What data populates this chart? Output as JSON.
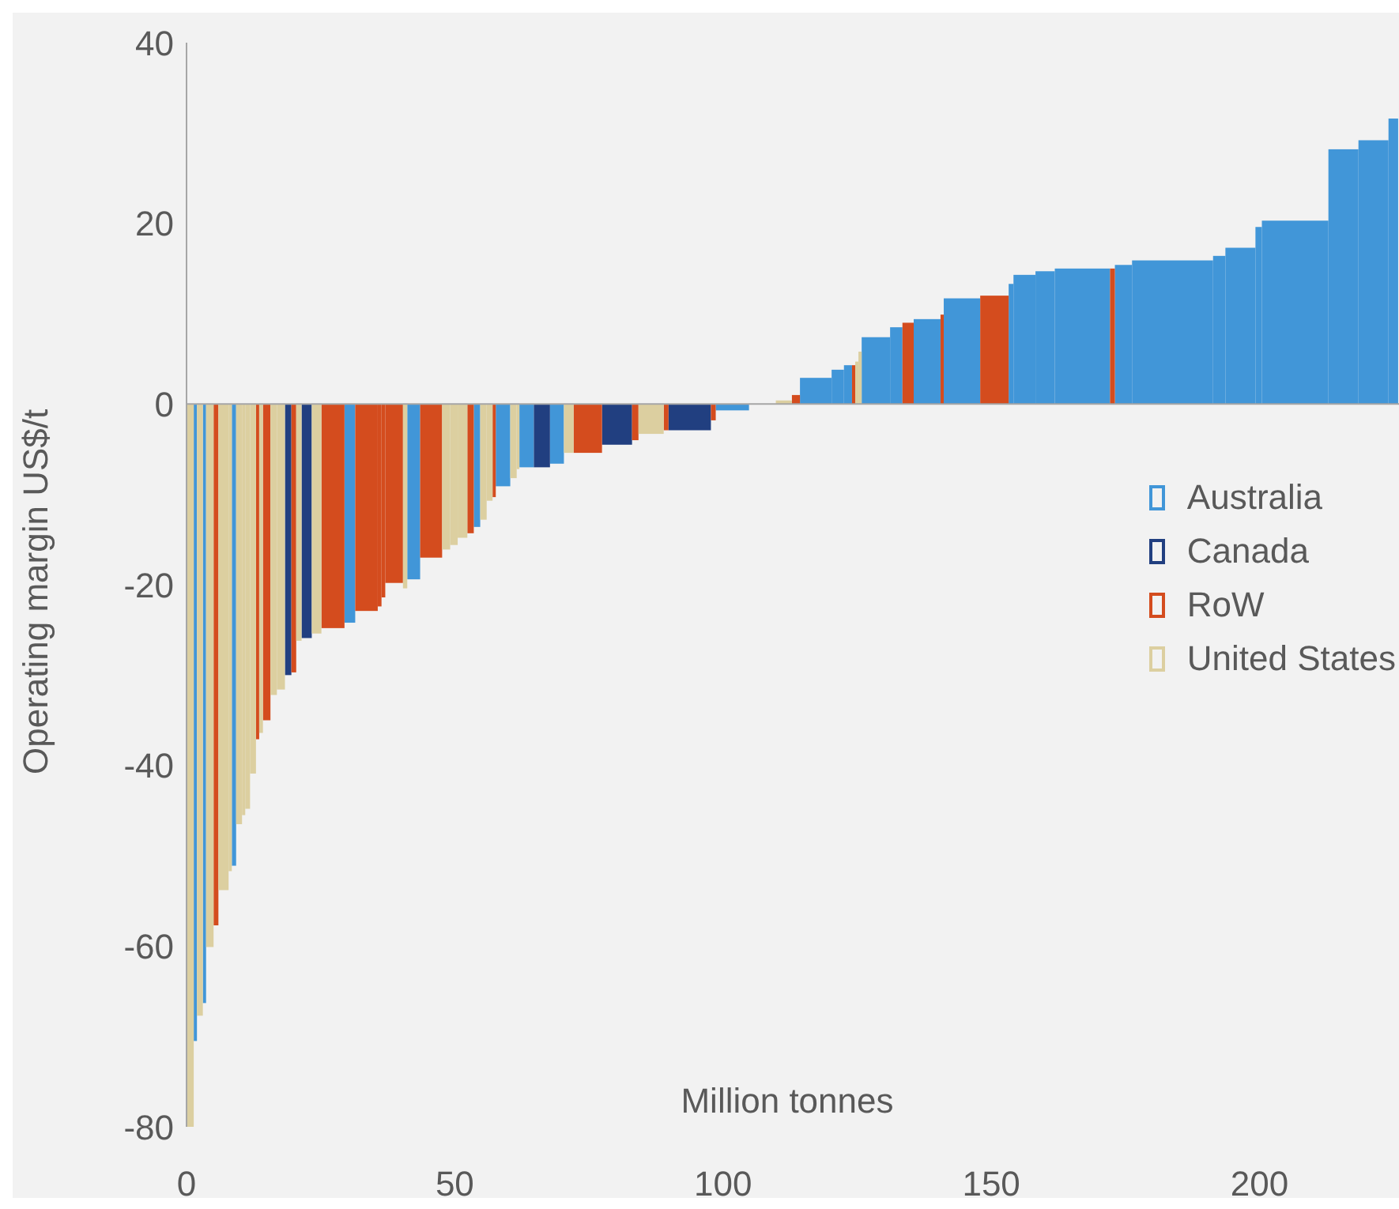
{
  "chart_data": {
    "type": "histogram",
    "xlabel": "Million tonnes",
    "ylabel": "Operating margin US$/t",
    "bins": [
      0,
      1.2,
      1.8,
      2.9,
      3.5,
      4.9,
      5.8,
      7.7,
      8.3,
      9.1,
      10.2,
      10.8,
      11.7,
      12.8,
      13.4,
      14.1,
      15.5,
      16.7,
      18.2,
      19.4,
      20.3,
      21.3,
      23.2,
      25.0,
      29.3,
      31.3,
      35.5,
      36.2,
      36.9,
      40.2,
      41.0,
      43.4,
      47.5,
      49.0,
      50.4,
      52.2,
      53.4,
      54.6,
      55.8,
      56.9,
      57.5,
      60.2,
      61.4,
      61.9,
      64.6,
      67.6,
      70.2,
      72.0,
      77.3,
      82.9,
      84.1,
      88.8,
      89.7,
      97.6,
      98.5,
      104.7,
      109.7,
      112.7,
      114.2,
      120.1,
      122.4,
      123.9,
      124.5,
      125.1,
      125.7,
      131.0,
      133.3,
      135.4,
      140.4,
      141.0,
      147.8,
      153.1,
      154.0,
      158.1,
      161.7,
      172.0,
      172.9,
      176.1,
      191.2,
      193.5,
      199.1,
      200.3,
      212.7,
      218.3,
      223.9,
      225.7
    ],
    "series": [
      {
        "name": "Australia",
        "color": "#4196d8",
        "values": [
          null,
          -70.5,
          null,
          -66.3,
          null,
          null,
          null,
          null,
          -51.1,
          null,
          null,
          null,
          null,
          null,
          null,
          null,
          null,
          null,
          null,
          null,
          null,
          null,
          null,
          null,
          -24.2,
          null,
          null,
          null,
          null,
          null,
          -19.4,
          null,
          null,
          null,
          null,
          null,
          -13.6,
          null,
          null,
          null,
          -9.1,
          null,
          null,
          -7.0,
          null,
          -6.6,
          null,
          null,
          null,
          null,
          null,
          null,
          null,
          null,
          -0.7,
          null,
          null,
          null,
          2.9,
          3.8,
          4.3,
          null,
          null,
          null,
          7.4,
          8.5,
          null,
          9.4,
          null,
          11.7,
          null,
          13.3,
          14.3,
          14.7,
          15.0,
          null,
          15.4,
          15.9,
          16.4,
          17.3,
          19.6,
          20.3,
          28.2,
          29.2,
          31.6
        ]
      },
      {
        "name": "Canada",
        "color": "#213f80",
        "values": [
          null,
          null,
          null,
          null,
          null,
          null,
          null,
          null,
          null,
          null,
          null,
          null,
          null,
          null,
          null,
          null,
          null,
          null,
          -30.0,
          null,
          null,
          -25.9,
          null,
          null,
          null,
          null,
          null,
          null,
          null,
          null,
          null,
          null,
          null,
          null,
          null,
          null,
          null,
          null,
          null,
          null,
          null,
          null,
          null,
          null,
          -7.0,
          null,
          null,
          null,
          -4.5,
          null,
          null,
          null,
          -2.9,
          null,
          null,
          null,
          null,
          null,
          null,
          null,
          null,
          null,
          null,
          null,
          null,
          null,
          null,
          null,
          null,
          null,
          null,
          null,
          null,
          null,
          null,
          null,
          null,
          null,
          null,
          null,
          null,
          null,
          null,
          null,
          null
        ]
      },
      {
        "name": "RoW",
        "color": "#d44c1e",
        "values": [
          null,
          null,
          null,
          null,
          null,
          -57.7,
          null,
          null,
          null,
          null,
          null,
          null,
          null,
          -37.1,
          null,
          -35.0,
          null,
          null,
          null,
          -29.7,
          null,
          null,
          null,
          -24.8,
          null,
          -22.9,
          -22.4,
          -21.4,
          -19.8,
          null,
          null,
          -17.0,
          null,
          null,
          null,
          -14.3,
          null,
          null,
          null,
          -10.3,
          null,
          null,
          null,
          null,
          null,
          null,
          null,
          -5.4,
          null,
          -4.0,
          null,
          -2.9,
          null,
          -1.8,
          null,
          null,
          null,
          1.0,
          null,
          null,
          null,
          4.3,
          null,
          null,
          null,
          null,
          9.0,
          null,
          9.9,
          null,
          12.0,
          null,
          null,
          null,
          null,
          15.0,
          null,
          null,
          null,
          null,
          null,
          null,
          null,
          null,
          null
        ]
      },
      {
        "name": "United States",
        "color": "#dccfa0",
        "values": [
          -80,
          null,
          -67.7,
          null,
          -60.1,
          null,
          -53.8,
          -51.7,
          null,
          -46.5,
          -45.5,
          -44.8,
          -40.9,
          null,
          -36.4,
          null,
          -32.2,
          -31.6,
          null,
          null,
          -26.2,
          null,
          -25.4,
          null,
          null,
          null,
          null,
          null,
          null,
          -20.4,
          null,
          null,
          -16.1,
          -15.6,
          -14.8,
          null,
          null,
          -12.8,
          -10.7,
          null,
          null,
          -8.2,
          -7.2,
          null,
          null,
          null,
          -5.4,
          null,
          null,
          null,
          -3.3,
          null,
          null,
          null,
          null,
          null,
          0.4,
          null,
          null,
          null,
          null,
          null,
          4.7,
          5.8,
          null,
          null,
          null,
          null,
          null,
          null,
          null,
          null,
          null,
          null,
          null,
          null,
          null,
          null,
          null,
          null,
          null,
          null,
          null,
          null,
          null
        ]
      }
    ],
    "xlim": [
      0,
      226
    ],
    "xticks": [
      0,
      50,
      100,
      150,
      200
    ],
    "ylim": [
      -80,
      40
    ],
    "yticks": [
      -80,
      -60,
      -40,
      -20,
      0,
      20,
      40
    ],
    "legend": "right"
  }
}
